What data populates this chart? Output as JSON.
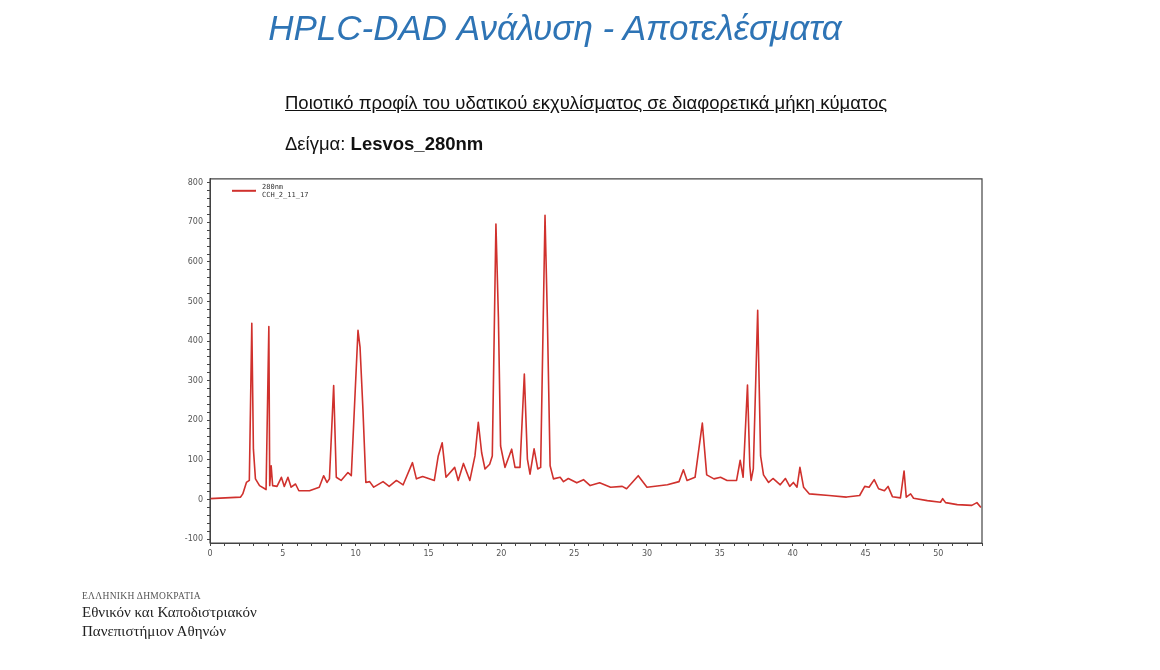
{
  "chart_data": {
    "type": "line",
    "title": "HPLC-DAD Ανάλυση - Αποτελέσματα",
    "subtitle": "Ποιοτικό προφίλ του υδατικού εκχυλίσματος σε διαφορετικά μήκη κύματος",
    "annotations": [
      "Δείγμα: Lesvos_280nm",
      "CCH_2_11_17",
      "ΕΛΛΗΝΙΚΗ ΔΗΜΟΚΡΑΤΙΑ",
      "Εθνικόν και Καποδιστριακόν",
      "Πανεπιστήμιον Αθηνών"
    ],
    "x": [
      0,
      2.1,
      2.25,
      2.5,
      2.7,
      2.87,
      2.98,
      3.12,
      3.4,
      3.85,
      4.04,
      4.1,
      4.2,
      4.3,
      4.6,
      4.9,
      5.1,
      5.35,
      5.57,
      5.87,
      6.1,
      6.83,
      7.5,
      7.8,
      8.03,
      8.2,
      8.49,
      8.67,
      9.0,
      9.47,
      9.7,
      10.16,
      10.3,
      10.5,
      10.7,
      10.96,
      11.24,
      11.88,
      12.3,
      12.8,
      13.26,
      13.9,
      14.17,
      14.6,
      15.4,
      15.67,
      15.94,
      16.2,
      16.8,
      17.04,
      17.4,
      17.84,
      18.19,
      18.42,
      18.65,
      18.88,
      19.2,
      19.38,
      19.63,
      19.8,
      19.95,
      20.25,
      20.71,
      20.94,
      21.28,
      21.58,
      21.79,
      21.97,
      22.25,
      22.5,
      22.7,
      23.0,
      23.16,
      23.35,
      23.58,
      24.04,
      24.27,
      24.6,
      25.18,
      25.64,
      26.1,
      26.75,
      27.5,
      28.3,
      28.6,
      29.4,
      30.0,
      31.4,
      32.2,
      32.5,
      32.75,
      33.3,
      33.8,
      34.1,
      34.6,
      35.05,
      35.5,
      36.15,
      36.4,
      36.6,
      36.9,
      37.06,
      37.15,
      37.3,
      37.6,
      37.8,
      38.0,
      38.35,
      38.65,
      39.15,
      39.5,
      39.8,
      40.05,
      40.3,
      40.5,
      40.75,
      41.15,
      42.5,
      43.7,
      44.6,
      44.95,
      45.25,
      45.6,
      45.9,
      46.3,
      46.55,
      46.85,
      47.4,
      47.65,
      47.8,
      48.1,
      48.3,
      49.25,
      50.15,
      50.3,
      50.5,
      51.3,
      52.3,
      52.65,
      52.9
    ],
    "series": [
      {
        "name": "280nm",
        "color": "#d0312d",
        "values": [
          2,
          6,
          14,
          43,
          48,
          445,
          127,
          52,
          35,
          25,
          437,
          35,
          85,
          35,
          33,
          56,
          33,
          56,
          31,
          39,
          22,
          22,
          31,
          60,
          43,
          52,
          288,
          56,
          48,
          68,
          60,
          427,
          385,
          227,
          43,
          45,
          31,
          45,
          33,
          48,
          37,
          93,
          52,
          58,
          48,
          110,
          143,
          56,
          81,
          48,
          91,
          48,
          110,
          195,
          118,
          77,
          89,
          110,
          696,
          460,
          135,
          81,
          127,
          81,
          81,
          317,
          102,
          64,
          128,
          77,
          81,
          718,
          460,
          85,
          52,
          56,
          45,
          53,
          42,
          50,
          35,
          42,
          31,
          33,
          27,
          60,
          31,
          37,
          45,
          75,
          48,
          56,
          193,
          62,
          52,
          56,
          48,
          48,
          99,
          56,
          289,
          85,
          48,
          77,
          478,
          110,
          62,
          43,
          53,
          37,
          53,
          33,
          43,
          31,
          81,
          31,
          14,
          10,
          6,
          10,
          33,
          31,
          50,
          27,
          22,
          33,
          7,
          4,
          72,
          6,
          14,
          3,
          -3,
          -7,
          2,
          -8,
          -13,
          -15,
          -8,
          -19
        ]
      }
    ],
    "xlim": [
      0,
      53
    ],
    "ylim": [
      -110,
      810
    ],
    "xticks": [
      0,
      {
        "value": 1,
        "label": null
      },
      {
        "value": 2,
        "label": null
      },
      {
        "value": 3,
        "label": null
      },
      {
        "value": 4,
        "label": null
      },
      5,
      {
        "value": 6,
        "label": null
      },
      {
        "value": 7,
        "label": null
      },
      {
        "value": 8,
        "label": null
      },
      {
        "value": 9,
        "label": null
      },
      10,
      {
        "value": 11,
        "label": null
      },
      {
        "value": 12,
        "label": null
      },
      {
        "value": 13,
        "label": null
      },
      {
        "value": 14,
        "label": null
      },
      15,
      {
        "value": 16,
        "label": null
      },
      {
        "value": 17,
        "label": null
      },
      {
        "value": 18,
        "label": null
      },
      {
        "value": 19,
        "label": null
      },
      20,
      {
        "value": 21,
        "label": null
      },
      {
        "value": 22,
        "label": null
      },
      {
        "value": 23,
        "label": null
      },
      {
        "value": 24,
        "label": null
      },
      25,
      {
        "value": 26,
        "label": null
      },
      {
        "value": 27,
        "label": null
      },
      {
        "value": 28,
        "label": null
      },
      {
        "value": 29,
        "label": null
      },
      30,
      {
        "value": 31,
        "label": null
      },
      {
        "value": 32,
        "label": null
      },
      {
        "value": 33,
        "label": null
      },
      {
        "value": 34,
        "label": null
      },
      35,
      {
        "value": 36,
        "label": null
      },
      {
        "value": 37,
        "label": null
      },
      {
        "value": 38,
        "label": null
      },
      {
        "value": 39,
        "label": null
      },
      40,
      {
        "value": 41,
        "label": null
      },
      {
        "value": 42,
        "label": null
      },
      {
        "value": 43,
        "label": null
      },
      {
        "value": 44,
        "label": null
      },
      45,
      {
        "value": 46,
        "label": null
      },
      {
        "value": 47,
        "label": null
      },
      {
        "value": 48,
        "label": null
      },
      {
        "value": 49,
        "label": null
      },
      50,
      {
        "value": 51,
        "label": null
      },
      {
        "value": 52,
        "label": null
      },
      {
        "value": 53,
        "label": null
      }
    ],
    "yticks": [
      -100,
      {
        "value": -80,
        "label": null
      },
      {
        "value": -60,
        "label": null
      },
      {
        "value": -40,
        "label": null
      },
      {
        "value": -20,
        "label": null
      },
      0,
      {
        "value": 20,
        "label": null
      },
      {
        "value": 40,
        "label": null
      },
      {
        "value": 60,
        "label": null
      },
      {
        "value": 80,
        "label": null
      },
      100,
      {
        "value": 120,
        "label": null
      },
      {
        "value": 140,
        "label": null
      },
      {
        "value": 160,
        "label": null
      },
      {
        "value": 180,
        "label": null
      },
      200,
      {
        "value": 220,
        "label": null
      },
      {
        "value": 240,
        "label": null
      },
      {
        "value": 260,
        "label": null
      },
      {
        "value": 280,
        "label": null
      },
      300,
      {
        "value": 320,
        "label": null
      },
      {
        "value": 340,
        "label": null
      },
      {
        "value": 360,
        "label": null
      },
      {
        "value": 380,
        "label": null
      },
      400,
      {
        "value": 420,
        "label": null
      },
      {
        "value": 440,
        "label": null
      },
      {
        "value": 460,
        "label": null
      },
      {
        "value": 480,
        "label": null
      },
      500,
      {
        "value": 520,
        "label": null
      },
      {
        "value": 540,
        "label": null
      },
      {
        "value": 560,
        "label": null
      },
      {
        "value": 580,
        "label": null
      },
      600,
      {
        "value": 620,
        "label": null
      },
      {
        "value": 640,
        "label": null
      },
      {
        "value": 660,
        "label": null
      },
      {
        "value": 680,
        "label": null
      },
      700,
      {
        "value": 720,
        "label": null
      },
      {
        "value": 740,
        "label": null
      },
      {
        "value": 760,
        "label": null
      },
      {
        "value": 780,
        "label": null
      },
      800
    ],
    "grid": false,
    "legend": "top left",
    "marker": "none",
    "line_style": "solid"
  }
}
